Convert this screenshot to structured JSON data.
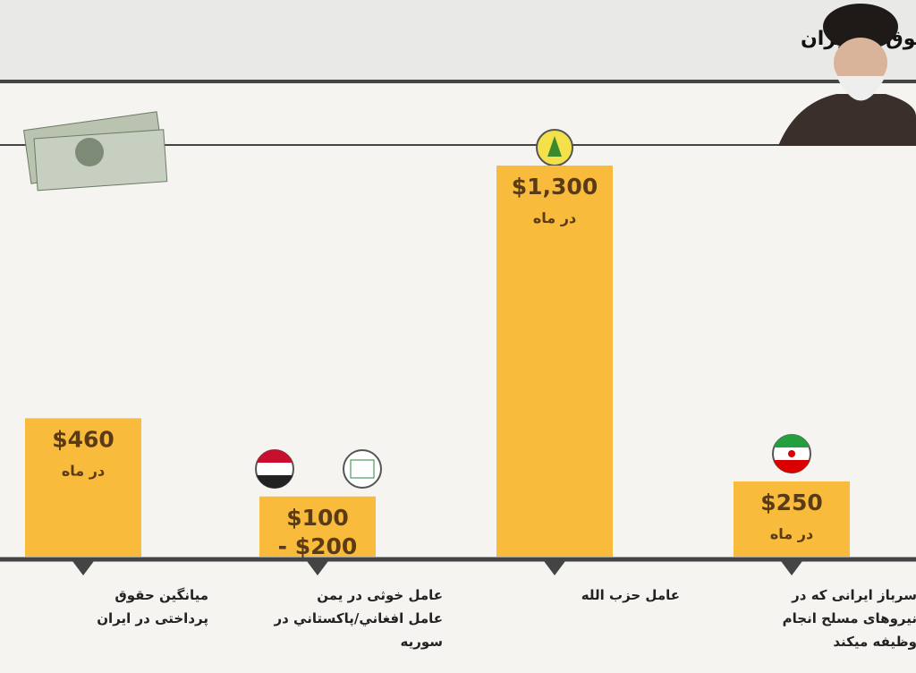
{
  "chart_data": {
    "type": "bar",
    "title": "بی عدالتی در پرداخت حقوق در ایران",
    "categories": [
      "میانگین حقوق\nپرداختی در ایران",
      "عامل خوثی در یمن\nعامل افغاني/پاکستاني در\nسوریه",
      "عامل حزب الله",
      "سرباز ایرانی که در\nنیروهای مسلح انجام\nوظیفه میکند"
    ],
    "values": [
      460,
      200,
      1300,
      250
    ],
    "value_labels": [
      "$460",
      "$100\n- $200",
      "$1,300",
      "$250"
    ],
    "unit_labels": [
      "در ماه",
      null,
      "در ماه",
      "در ماه"
    ],
    "color": "#f8bb3b"
  }
}
